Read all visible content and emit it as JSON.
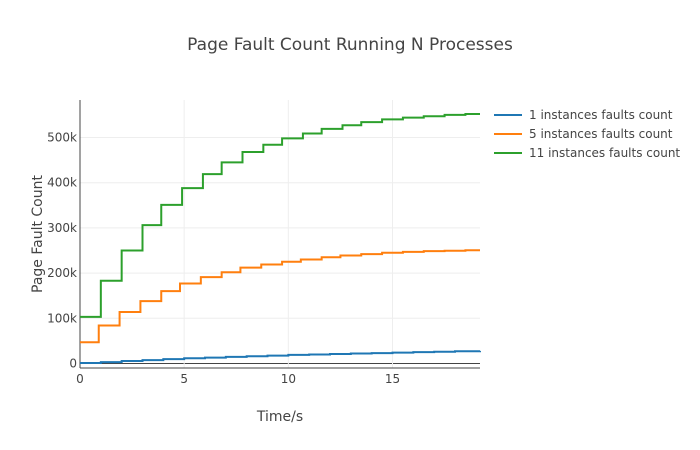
{
  "chart_data": {
    "type": "line",
    "title": "Page Fault Count Running N Processes",
    "xlabel": "Time/s",
    "ylabel": "Page Fault Count",
    "xlim": [
      0,
      19.2
    ],
    "ylim": [
      -10000,
      583000
    ],
    "x_ticks": [
      {
        "value": 0,
        "label": "0"
      },
      {
        "value": 5,
        "label": "5"
      },
      {
        "value": 10,
        "label": "10"
      },
      {
        "value": 15,
        "label": "15"
      }
    ],
    "y_ticks": [
      {
        "value": 0,
        "label": "0"
      },
      {
        "value": 100000,
        "label": "100k"
      },
      {
        "value": 200000,
        "label": "200k"
      },
      {
        "value": 300000,
        "label": "300k"
      },
      {
        "value": 400000,
        "label": "400k"
      },
      {
        "value": 500000,
        "label": "500k"
      }
    ],
    "grid": true,
    "legend_position": "right",
    "series": [
      {
        "name": "1 instances faults count",
        "color": "#1f77b4",
        "step": true,
        "x": [
          0,
          1,
          2,
          3,
          4,
          5,
          6,
          7,
          8,
          9,
          10,
          11,
          12,
          13,
          14,
          15,
          16,
          17,
          18,
          19.2
        ],
        "y": [
          1000,
          3000,
          5500,
          7500,
          9500,
          11500,
          13000,
          14500,
          16000,
          17500,
          19000,
          20000,
          21000,
          22000,
          23000,
          24000,
          25000,
          26000,
          27000,
          28000
        ]
      },
      {
        "name": "5 instances faults count",
        "color": "#ff7f0e",
        "step": true,
        "x": [
          0,
          0.9,
          1.9,
          2.9,
          3.9,
          4.8,
          5.8,
          6.8,
          7.7,
          8.7,
          9.7,
          10.6,
          11.6,
          12.5,
          13.5,
          14.5,
          15.5,
          16.5,
          17.5,
          18.5,
          19.2
        ],
        "y": [
          47000,
          84000,
          114000,
          138000,
          160000,
          177000,
          191000,
          202000,
          212000,
          219000,
          225000,
          230000,
          235000,
          239000,
          242000,
          245000,
          247000,
          248500,
          249500,
          250500,
          250500
        ]
      },
      {
        "name": "11 instances faults count",
        "color": "#2ca02c",
        "step": true,
        "x": [
          0,
          1.0,
          2.0,
          3.0,
          3.9,
          4.9,
          5.9,
          6.8,
          7.8,
          8.8,
          9.7,
          10.7,
          11.6,
          12.6,
          13.5,
          14.5,
          15.5,
          16.5,
          17.5,
          18.5,
          19.2
        ],
        "y": [
          103000,
          183000,
          250000,
          306000,
          351000,
          388000,
          419000,
          445000,
          468000,
          484000,
          498000,
          509000,
          519000,
          527000,
          534000,
          540000,
          544000,
          547000,
          550000,
          552000,
          552000
        ]
      }
    ]
  }
}
